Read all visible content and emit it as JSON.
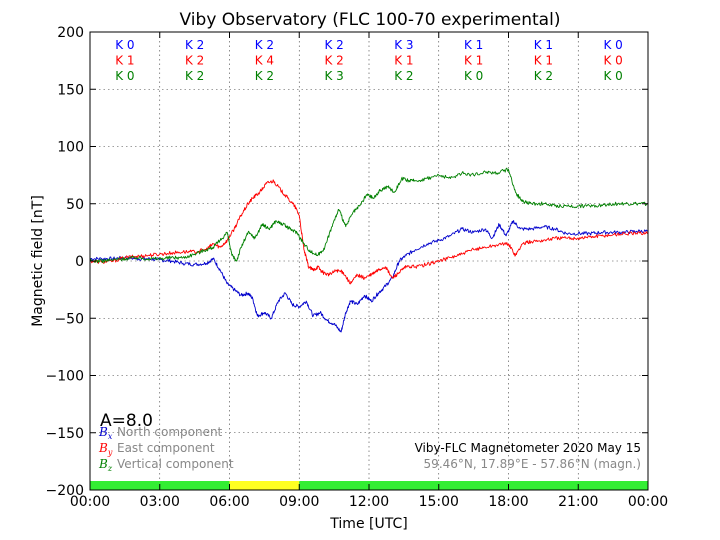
{
  "chart_data": {
    "type": "line",
    "title": "Viby Observatory (FLC 100-70 experimental)",
    "xlabel": "Time [UTC]",
    "ylabel": "Magnetic field [nT]",
    "xlim": [
      0,
      24
    ],
    "ylim": [
      -200,
      200
    ],
    "x_ticks": [
      {
        "v": 0,
        "label": "00:00"
      },
      {
        "v": 3,
        "label": "03:00"
      },
      {
        "v": 6,
        "label": "06:00"
      },
      {
        "v": 9,
        "label": "09:00"
      },
      {
        "v": 12,
        "label": "12:00"
      },
      {
        "v": 15,
        "label": "15:00"
      },
      {
        "v": 18,
        "label": "18:00"
      },
      {
        "v": 21,
        "label": "21:00"
      },
      {
        "v": 24,
        "label": "00:00"
      }
    ],
    "y_ticks": [
      {
        "v": 200,
        "label": "200"
      },
      {
        "v": 150,
        "label": "150"
      },
      {
        "v": 100,
        "label": "100"
      },
      {
        "v": 50,
        "label": "50"
      },
      {
        "v": 0,
        "label": "0"
      },
      {
        "v": -50,
        "label": "−50"
      },
      {
        "v": -100,
        "label": "−100"
      },
      {
        "v": -150,
        "label": "−150"
      },
      {
        "v": -200,
        "label": "−200"
      }
    ],
    "grid": true,
    "k_indices": {
      "x_centers": [
        1.5,
        4.5,
        7.5,
        10.5,
        13.5,
        16.5,
        19.5,
        22.5
      ],
      "rows": [
        {
          "color": "#0000ff",
          "labels": [
            "K 0",
            "K 2",
            "K 2",
            "K 2",
            "K 3",
            "K 1",
            "K 1",
            "K 0"
          ]
        },
        {
          "color": "#ff0000",
          "labels": [
            "K 1",
            "K 2",
            "K 4",
            "K 2",
            "K 1",
            "K 1",
            "K 1",
            "K 0"
          ]
        },
        {
          "color": "#008000",
          "labels": [
            "K 0",
            "K 2",
            "K 2",
            "K 3",
            "K 2",
            "K 0",
            "K 2",
            "K 0"
          ]
        }
      ]
    },
    "activity_bar": [
      {
        "from": 0,
        "to": 6,
        "color": "#33ee33"
      },
      {
        "from": 6,
        "to": 9,
        "color": "#ffff22"
      },
      {
        "from": 9,
        "to": 24,
        "color": "#33ee33"
      }
    ],
    "series": [
      {
        "color": "#0000cc",
        "x": [
          0,
          0.5,
          1,
          1.5,
          2,
          2.5,
          3,
          3.5,
          4,
          4.5,
          5,
          5.3,
          5.6,
          5.9,
          6.2,
          6.5,
          6.8,
          7.0,
          7.2,
          7.5,
          7.8,
          8.1,
          8.4,
          8.7,
          9.0,
          9.3,
          9.6,
          9.9,
          10.2,
          10.5,
          10.8,
          11.0,
          11.2,
          11.5,
          11.8,
          12.1,
          12.4,
          12.7,
          13.0,
          13.3,
          13.6,
          14.0,
          14.5,
          15.0,
          15.5,
          16.0,
          16.5,
          17.0,
          17.3,
          17.6,
          17.9,
          18.2,
          18.5,
          19.0,
          19.5,
          20.0,
          20.5,
          21.0,
          21.5,
          22.0,
          22.5,
          23.0,
          23.5,
          24
        ],
        "y": [
          2,
          2,
          2,
          3,
          2,
          2,
          1,
          0,
          -2,
          -3,
          -2,
          2,
          -8,
          -20,
          -25,
          -30,
          -28,
          -33,
          -48,
          -45,
          -50,
          -35,
          -28,
          -38,
          -40,
          -35,
          -48,
          -45,
          -52,
          -55,
          -62,
          -45,
          -35,
          -38,
          -30,
          -35,
          -28,
          -22,
          -15,
          0,
          5,
          10,
          15,
          18,
          22,
          28,
          25,
          28,
          20,
          32,
          22,
          35,
          28,
          28,
          30,
          28,
          24,
          24,
          24,
          25,
          25,
          25,
          26,
          26
        ]
      },
      {
        "color": "#ff0000",
        "x": [
          0,
          0.5,
          1,
          1.5,
          2,
          2.5,
          3,
          3.5,
          4,
          4.5,
          5,
          5.3,
          5.6,
          5.9,
          6.2,
          6.5,
          6.8,
          7.0,
          7.3,
          7.6,
          7.9,
          8.2,
          8.5,
          8.8,
          9.0,
          9.2,
          9.4,
          9.6,
          9.8,
          10.0,
          10.3,
          10.6,
          10.9,
          11.2,
          11.5,
          11.8,
          12.1,
          12.4,
          12.7,
          13.0,
          13.3,
          13.6,
          14.0,
          14.5,
          15.0,
          15.5,
          16.0,
          16.5,
          17.0,
          17.5,
          18.0,
          18.3,
          18.6,
          19.0,
          19.5,
          20.0,
          20.5,
          21.0,
          21.5,
          22.0,
          22.5,
          23.0,
          23.5,
          24
        ],
        "y": [
          0,
          -1,
          0,
          3,
          4,
          5,
          6,
          7,
          8,
          8,
          10,
          15,
          12,
          18,
          28,
          40,
          50,
          55,
          60,
          68,
          70,
          62,
          55,
          48,
          40,
          10,
          -5,
          -8,
          -5,
          -10,
          -12,
          -8,
          -10,
          -20,
          -12,
          -15,
          -12,
          -8,
          -5,
          -15,
          -10,
          -5,
          -5,
          -3,
          0,
          3,
          6,
          10,
          12,
          14,
          15,
          5,
          15,
          17,
          18,
          20,
          20,
          20,
          21,
          22,
          23,
          24,
          24,
          25
        ]
      },
      {
        "color": "#008000",
        "x": [
          0,
          0.5,
          1,
          1.5,
          2,
          2.5,
          3,
          3.5,
          4,
          4.5,
          5,
          5.3,
          5.6,
          5.9,
          6.1,
          6.3,
          6.5,
          6.8,
          7.1,
          7.4,
          7.7,
          8.0,
          8.3,
          8.6,
          8.9,
          9.2,
          9.5,
          9.8,
          10.1,
          10.4,
          10.7,
          11.0,
          11.3,
          11.6,
          11.9,
          12.2,
          12.5,
          12.8,
          13.1,
          13.4,
          13.7,
          14.0,
          14.5,
          15.0,
          15.5,
          16.0,
          16.5,
          17.0,
          17.5,
          18.0,
          18.3,
          18.6,
          19.0,
          19.5,
          20.0,
          20.5,
          21.0,
          21.5,
          22.0,
          22.5,
          23.0,
          23.5,
          24
        ],
        "y": [
          0,
          0,
          1,
          2,
          3,
          2,
          2,
          3,
          3,
          6,
          10,
          12,
          18,
          25,
          5,
          0,
          12,
          25,
          20,
          32,
          28,
          35,
          32,
          28,
          25,
          15,
          8,
          5,
          12,
          30,
          45,
          30,
          42,
          48,
          58,
          55,
          62,
          65,
          60,
          72,
          70,
          70,
          72,
          75,
          72,
          77,
          75,
          78,
          77,
          80,
          60,
          52,
          50,
          50,
          48,
          48,
          48,
          48,
          49,
          50,
          50,
          50,
          50
        ]
      }
    ]
  },
  "annotations": {
    "a_index": "A=8.0",
    "legend": [
      {
        "symbol": "B",
        "sub": "x",
        "text": "North component",
        "color": "#0000cc"
      },
      {
        "symbol": "B",
        "sub": "y",
        "text": "East component",
        "color": "#ff0000"
      },
      {
        "symbol": "B",
        "sub": "z",
        "text": "Vertical component",
        "color": "#008000"
      }
    ],
    "instrument": "Viby-FLC Magnetometer 2020 May 15",
    "location": "59.46°N, 17.89°E - 57.86°N (magn.)"
  }
}
